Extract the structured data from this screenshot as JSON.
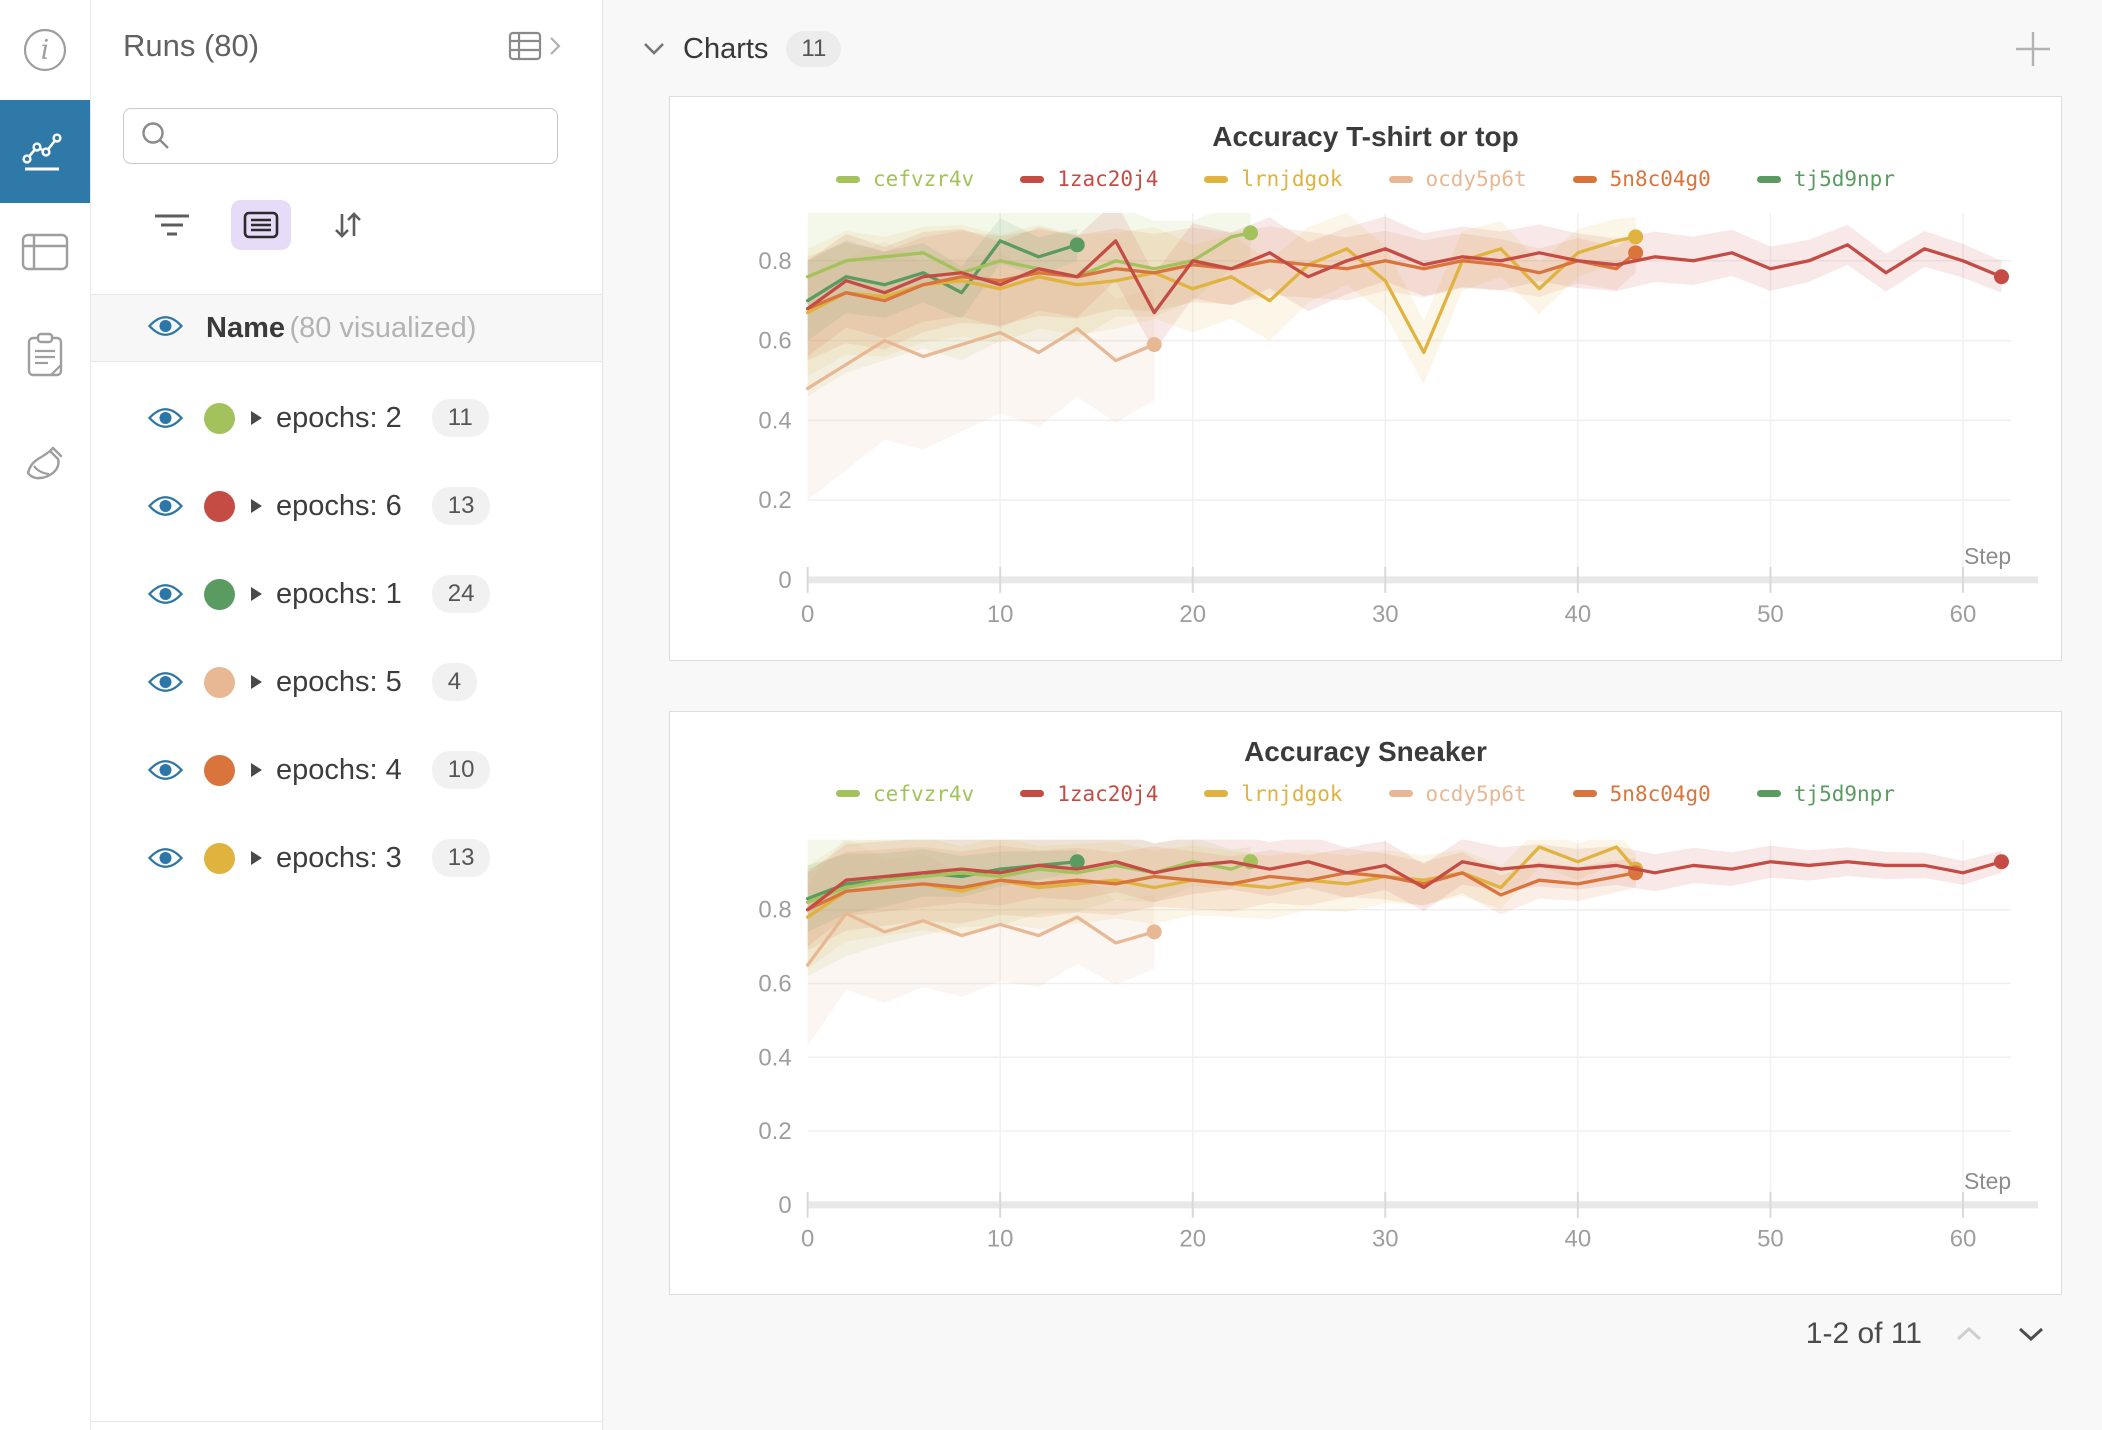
{
  "sidebar": {
    "icons": [
      {
        "name": "info-icon",
        "active": false
      },
      {
        "name": "line-chart-icon",
        "active": true
      },
      {
        "name": "table-icon",
        "active": false
      },
      {
        "name": "notes-icon",
        "active": false
      },
      {
        "name": "broom-icon",
        "active": false
      }
    ],
    "active_color": "#2f79a8"
  },
  "runs_panel": {
    "title": "Runs (80)",
    "search": {
      "value": "",
      "placeholder": ""
    },
    "name_row": {
      "label": "Name",
      "sublabel": "(80 visualized)"
    },
    "groups": [
      {
        "label": "epochs: 2",
        "count": "11",
        "color": "#a3c25c"
      },
      {
        "label": "epochs: 6",
        "count": "13",
        "color": "#c54c44"
      },
      {
        "label": "epochs: 1",
        "count": "24",
        "color": "#5a9b61"
      },
      {
        "label": "epochs: 5",
        "count": "4",
        "color": "#e8b894"
      },
      {
        "label": "epochs: 4",
        "count": "10",
        "color": "#d9743c"
      },
      {
        "label": "epochs: 3",
        "count": "13",
        "color": "#e0b23e"
      }
    ],
    "eye_color": "#2d76a8"
  },
  "main": {
    "header": {
      "label": "Charts",
      "count": "11"
    },
    "pagination": {
      "label": "1-2 of 11"
    }
  },
  "chart_data": [
    {
      "type": "line",
      "title": "Accuracy T-shirt or top",
      "xlabel": "Step",
      "ylabel": "",
      "xlim": [
        0,
        62.5
      ],
      "ylim": [
        0,
        0.92
      ],
      "xticks": [
        0,
        10,
        20,
        30,
        40,
        50,
        60
      ],
      "yticks": [
        0,
        0.2,
        0.4,
        0.6,
        0.8
      ],
      "grid": true,
      "legend_position": "top",
      "series": [
        {
          "name": "cefvzr4v",
          "color": "#a3c25c",
          "band": [
            0.3,
            0.06
          ],
          "x": [
            0,
            2,
            4,
            6,
            8,
            10,
            12,
            14,
            16,
            18,
            20,
            22,
            23
          ],
          "y": [
            0.76,
            0.8,
            0.81,
            0.82,
            0.77,
            0.8,
            0.78,
            0.76,
            0.8,
            0.78,
            0.8,
            0.86,
            0.87
          ]
        },
        {
          "name": "1zac20j4",
          "color": "#c54c44",
          "band": [
            0.12,
            0.04
          ],
          "x": [
            0,
            2,
            4,
            6,
            8,
            10,
            12,
            14,
            16,
            18,
            20,
            22,
            24,
            26,
            28,
            30,
            32,
            34,
            36,
            38,
            40,
            42,
            44,
            46,
            48,
            50,
            52,
            54,
            56,
            58,
            60,
            62
          ],
          "y": [
            0.68,
            0.75,
            0.72,
            0.76,
            0.77,
            0.74,
            0.78,
            0.76,
            0.85,
            0.67,
            0.8,
            0.78,
            0.82,
            0.76,
            0.8,
            0.83,
            0.79,
            0.81,
            0.8,
            0.82,
            0.8,
            0.79,
            0.81,
            0.8,
            0.82,
            0.78,
            0.8,
            0.84,
            0.77,
            0.83,
            0.8,
            0.76
          ]
        },
        {
          "name": "lrnjdgok",
          "color": "#e0b23e",
          "band": [
            0.16,
            0.05
          ],
          "x": [
            0,
            2,
            4,
            6,
            8,
            10,
            12,
            14,
            16,
            18,
            20,
            22,
            24,
            26,
            28,
            30,
            32,
            34,
            36,
            38,
            40,
            42,
            43
          ],
          "y": [
            0.67,
            0.72,
            0.71,
            0.74,
            0.75,
            0.73,
            0.76,
            0.74,
            0.75,
            0.77,
            0.73,
            0.76,
            0.7,
            0.79,
            0.83,
            0.75,
            0.57,
            0.8,
            0.83,
            0.73,
            0.82,
            0.85,
            0.86
          ]
        },
        {
          "name": "ocdy5p6t",
          "color": "#e8b894",
          "band": [
            0.28,
            0.14
          ],
          "x": [
            0,
            2,
            4,
            6,
            8,
            10,
            12,
            14,
            16,
            18
          ],
          "y": [
            0.48,
            0.54,
            0.6,
            0.56,
            0.59,
            0.62,
            0.57,
            0.63,
            0.55,
            0.59
          ]
        },
        {
          "name": "5n8c04g0",
          "color": "#d9743c",
          "band": [
            0.13,
            0.05
          ],
          "x": [
            0,
            2,
            4,
            6,
            8,
            10,
            12,
            14,
            16,
            18,
            20,
            22,
            24,
            26,
            28,
            30,
            32,
            34,
            36,
            38,
            40,
            42,
            43
          ],
          "y": [
            0.68,
            0.72,
            0.7,
            0.74,
            0.76,
            0.75,
            0.77,
            0.76,
            0.78,
            0.77,
            0.79,
            0.78,
            0.8,
            0.79,
            0.78,
            0.8,
            0.78,
            0.8,
            0.79,
            0.77,
            0.8,
            0.78,
            0.82
          ]
        },
        {
          "name": "tj5d9npr",
          "color": "#5a9b61",
          "band": [
            0.1,
            0.04
          ],
          "x": [
            0,
            2,
            4,
            6,
            8,
            10,
            12,
            14
          ],
          "y": [
            0.7,
            0.76,
            0.74,
            0.77,
            0.72,
            0.85,
            0.81,
            0.84
          ]
        }
      ]
    },
    {
      "type": "line",
      "title": "Accuracy Sneaker",
      "xlabel": "Step",
      "ylabel": "",
      "xlim": [
        0,
        62.5
      ],
      "ylim": [
        0,
        0.99
      ],
      "xticks": [
        0,
        10,
        20,
        30,
        40,
        50,
        60
      ],
      "yticks": [
        0,
        0.2,
        0.4,
        0.6,
        0.8
      ],
      "grid": true,
      "legend_position": "top",
      "series": [
        {
          "name": "cefvzr4v",
          "color": "#a3c25c",
          "band": [
            0.2,
            0.04
          ],
          "x": [
            0,
            2,
            4,
            6,
            8,
            10,
            12,
            14,
            16,
            18,
            20,
            22,
            23
          ],
          "y": [
            0.82,
            0.86,
            0.88,
            0.89,
            0.9,
            0.89,
            0.91,
            0.9,
            0.92,
            0.9,
            0.93,
            0.91,
            0.93
          ]
        },
        {
          "name": "1zac20j4",
          "color": "#c54c44",
          "band": [
            0.1,
            0.03
          ],
          "x": [
            0,
            2,
            4,
            6,
            8,
            10,
            12,
            14,
            16,
            18,
            20,
            22,
            24,
            26,
            28,
            30,
            32,
            34,
            36,
            38,
            40,
            42,
            44,
            46,
            48,
            50,
            52,
            54,
            56,
            58,
            60,
            62
          ],
          "y": [
            0.8,
            0.88,
            0.89,
            0.9,
            0.91,
            0.9,
            0.92,
            0.91,
            0.93,
            0.9,
            0.92,
            0.93,
            0.91,
            0.93,
            0.9,
            0.92,
            0.86,
            0.93,
            0.91,
            0.92,
            0.91,
            0.92,
            0.9,
            0.92,
            0.91,
            0.93,
            0.92,
            0.93,
            0.92,
            0.92,
            0.9,
            0.93
          ]
        },
        {
          "name": "lrnjdgok",
          "color": "#e0b23e",
          "band": [
            0.14,
            0.04
          ],
          "x": [
            0,
            2,
            4,
            6,
            8,
            10,
            12,
            14,
            16,
            18,
            20,
            22,
            24,
            26,
            28,
            30,
            32,
            34,
            36,
            38,
            40,
            42,
            43
          ],
          "y": [
            0.78,
            0.85,
            0.86,
            0.87,
            0.85,
            0.88,
            0.86,
            0.87,
            0.88,
            0.86,
            0.88,
            0.87,
            0.86,
            0.88,
            0.87,
            0.89,
            0.88,
            0.9,
            0.86,
            0.97,
            0.93,
            0.97,
            0.91
          ]
        },
        {
          "name": "ocdy5p6t",
          "color": "#e8b894",
          "band": [
            0.22,
            0.1
          ],
          "x": [
            0,
            2,
            4,
            6,
            8,
            10,
            12,
            14,
            16,
            18
          ],
          "y": [
            0.65,
            0.79,
            0.74,
            0.77,
            0.73,
            0.76,
            0.73,
            0.78,
            0.71,
            0.74
          ]
        },
        {
          "name": "5n8c04g0",
          "color": "#d9743c",
          "band": [
            0.11,
            0.04
          ],
          "x": [
            0,
            2,
            4,
            6,
            8,
            10,
            12,
            14,
            16,
            18,
            20,
            22,
            24,
            26,
            28,
            30,
            32,
            34,
            36,
            38,
            40,
            42,
            43
          ],
          "y": [
            0.8,
            0.85,
            0.86,
            0.87,
            0.86,
            0.88,
            0.87,
            0.88,
            0.87,
            0.89,
            0.88,
            0.87,
            0.89,
            0.88,
            0.9,
            0.89,
            0.87,
            0.9,
            0.84,
            0.88,
            0.87,
            0.89,
            0.9
          ]
        },
        {
          "name": "tj5d9npr",
          "color": "#5a9b61",
          "band": [
            0.09,
            0.03
          ],
          "x": [
            0,
            2,
            4,
            6,
            8,
            10,
            12,
            14
          ],
          "y": [
            0.83,
            0.87,
            0.88,
            0.9,
            0.89,
            0.91,
            0.92,
            0.93
          ]
        }
      ]
    }
  ]
}
